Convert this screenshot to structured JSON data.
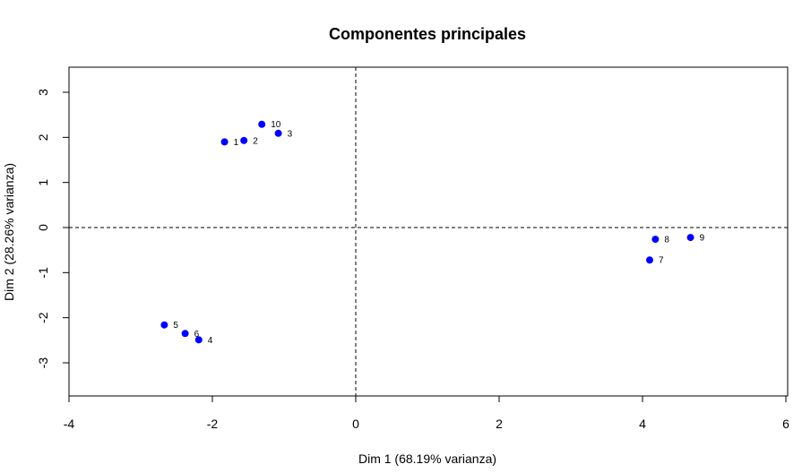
{
  "chart_data": {
    "type": "scatter",
    "title": "Componentes principales",
    "xlabel": "Dim 1 (68.19% varianza)",
    "ylabel": "Dim 2 (28.26% varianza)",
    "xlim": [
      -4,
      6
    ],
    "ylim": [
      -3.8,
      3.6
    ],
    "xticks": [
      -4,
      -2,
      0,
      2,
      4,
      6
    ],
    "yticks": [
      -3,
      -2,
      -1,
      0,
      1,
      2,
      3
    ],
    "grid": false,
    "reference_lines": {
      "x": 0,
      "y": 0,
      "style": "dashed"
    },
    "point_color": "#0000ff",
    "points": [
      {
        "label": "1",
        "x": -1.83,
        "y": 1.9
      },
      {
        "label": "2",
        "x": -1.56,
        "y": 1.93
      },
      {
        "label": "3",
        "x": -1.08,
        "y": 2.09
      },
      {
        "label": "4",
        "x": -2.19,
        "y": -2.49
      },
      {
        "label": "5",
        "x": -2.67,
        "y": -2.16
      },
      {
        "label": "6",
        "x": -2.38,
        "y": -2.35
      },
      {
        "label": "7",
        "x": 4.1,
        "y": -0.72
      },
      {
        "label": "8",
        "x": 4.18,
        "y": -0.26
      },
      {
        "label": "9",
        "x": 4.67,
        "y": -0.22
      },
      {
        "label": "10",
        "x": -1.31,
        "y": 2.29
      }
    ]
  }
}
